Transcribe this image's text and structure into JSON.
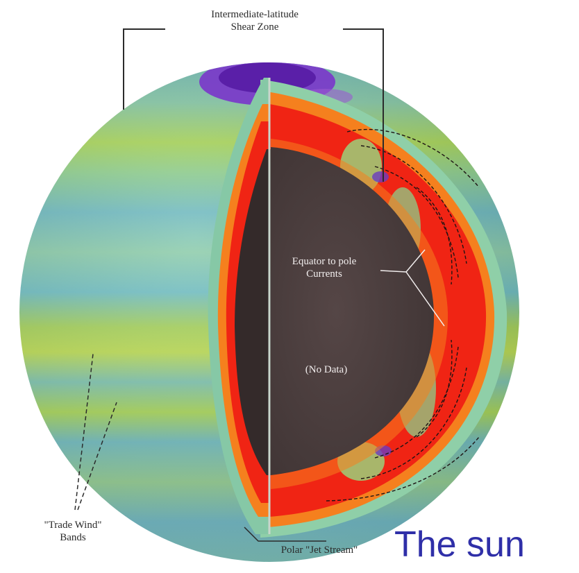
{
  "labels": {
    "shear_zone": [
      "Intermediate-latitude",
      "Shear Zone"
    ],
    "currents": [
      "Equator to pole",
      "Currents"
    ],
    "no_data": "(No Data)",
    "trade_wind": [
      "\"Trade Wind\"",
      "Bands"
    ],
    "jet_stream": "Polar \"Jet Stream\""
  },
  "caption": "The sun",
  "colors": {
    "surface_teal": "#7fc4b0",
    "surface_green": "#a9d65a",
    "shear_purple": "#6a2bb8",
    "hot_red": "#f02414",
    "warm_orange": "#f5801e",
    "core_dark": "#4a3d3d",
    "caption_blue": "#2f2fa8"
  }
}
